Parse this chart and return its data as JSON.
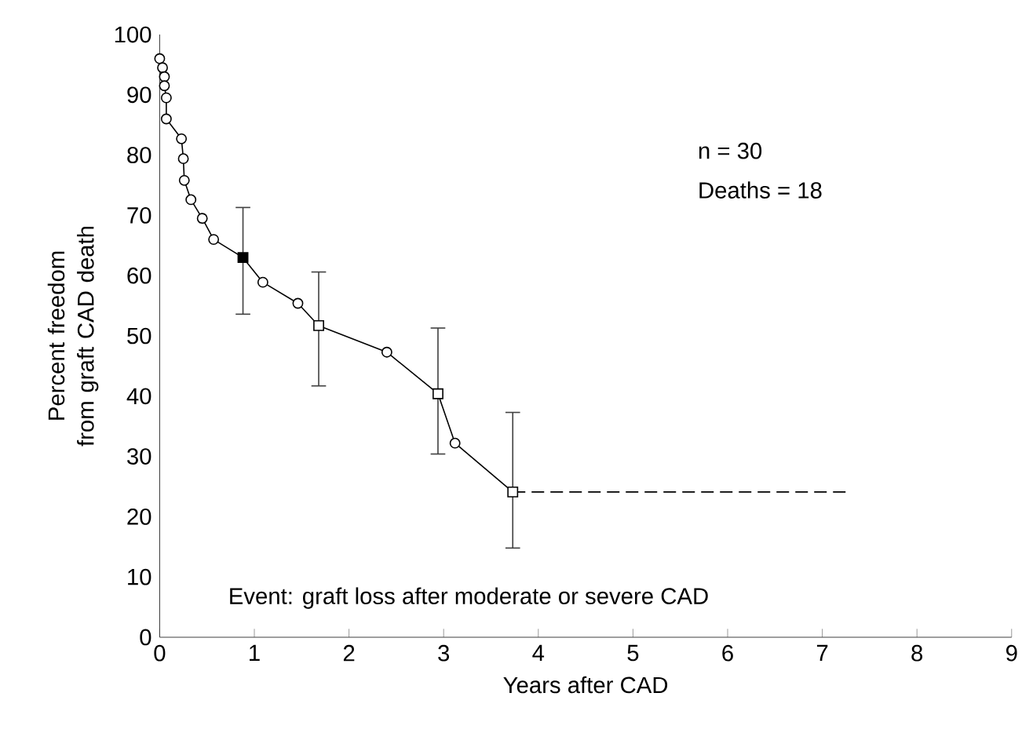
{
  "chart_data": {
    "type": "line",
    "xlabel": "Years after CAD",
    "ylabel": "Percent freedom from graft CAD death",
    "annotations": [
      "n = 30",
      "Deaths = 18",
      "Event:  graft loss after moderate or severe CAD"
    ],
    "xlim": [
      0,
      9
    ],
    "xticks": [
      0,
      1,
      2,
      3,
      4,
      5,
      6,
      7,
      8,
      9
    ],
    "ylim": [
      0,
      100
    ],
    "yticks": [
      0,
      10,
      20,
      30,
      40,
      50,
      60,
      70,
      80,
      90,
      100
    ],
    "series": [
      {
        "type": "line",
        "color": "#000000",
        "marker": "none",
        "line_style": "solid",
        "x": [
          0,
          0.03,
          0.05,
          0.05,
          0.07,
          0.07,
          0.23,
          0.25,
          0.26,
          0.33,
          0.45,
          0.57,
          0.88,
          1.09,
          1.46,
          1.68,
          2.4,
          2.94,
          3.12,
          3.73
        ],
        "values": [
          96,
          94.5,
          93,
          91.5,
          89.5,
          86,
          82.7,
          79.4,
          75.8,
          72.6,
          69.5,
          66,
          63,
          58.9,
          55.4,
          51.7,
          47.3,
          40.4,
          32.2,
          24.1
        ]
      },
      {
        "type": "line",
        "color": "#000000",
        "marker": "none",
        "line_style": "dashed",
        "x": [
          3.73,
          7.27
        ],
        "values": [
          24.1,
          24.1
        ]
      },
      {
        "type": "scatter",
        "color": "#000000",
        "marker": "circle",
        "colors": [
          "#ffffff",
          "#ffffff",
          "#ffffff",
          "#ffffff",
          "#ffffff",
          "#ffffff",
          "#ffffff",
          "#ffffff",
          "#ffffff",
          "#ffffff",
          "#ffffff",
          "#ffffff",
          "#ffffff",
          "#ffffff",
          "#ffffff",
          "#ffffff"
        ],
        "x": [
          0,
          0.03,
          0.05,
          0.05,
          0.07,
          0.07,
          0.23,
          0.25,
          0.26,
          0.33,
          0.45,
          0.57,
          1.09,
          1.46,
          2.4,
          3.12
        ],
        "values": [
          96,
          94.5,
          93,
          91.5,
          89.5,
          86,
          82.7,
          79.4,
          75.8,
          72.6,
          69.5,
          66,
          58.9,
          55.4,
          47.3,
          32.2
        ]
      },
      {
        "type": "scatter",
        "color": "#000000",
        "marker": "square",
        "colors": [
          "#000000",
          "#ffffff",
          "#ffffff",
          "#ffffff"
        ],
        "x": [
          0.88,
          1.68,
          2.94,
          3.73
        ],
        "values": [
          63,
          51.7,
          40.4,
          24.1
        ],
        "errors": [
          [
            53.6,
            71.3
          ],
          [
            41.7,
            60.6
          ],
          [
            30.4,
            51.3
          ],
          [
            14.8,
            37.3
          ]
        ]
      }
    ]
  }
}
